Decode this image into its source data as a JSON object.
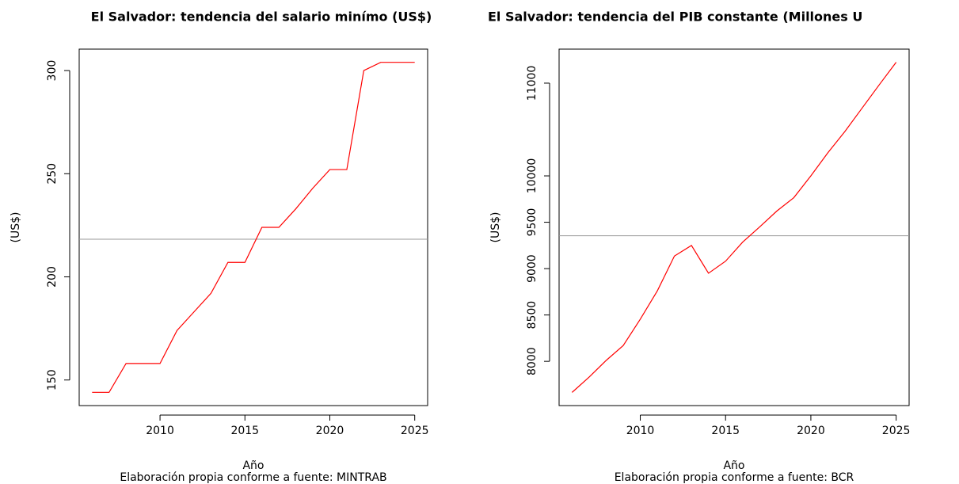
{
  "chart_data": [
    {
      "type": "line",
      "title": "El Salvador: tendencia del salario minímo (US$)",
      "x_label": "Año",
      "y_label": "(US$)",
      "caption": "Elaboración propia conforme a fuente: MINTRAB",
      "x": [
        2006,
        2007,
        2008,
        2009,
        2010,
        2011,
        2012,
        2013,
        2014,
        2015,
        2016,
        2017,
        2018,
        2019,
        2020,
        2021,
        2022,
        2023,
        2024,
        2025
      ],
      "series": [
        {
          "color": "#ff0000",
          "values": [
            144,
            144,
            158,
            158,
            158,
            174,
            183,
            192,
            207,
            207,
            224,
            224,
            233,
            243,
            252,
            252,
            300,
            304,
            304,
            304
          ]
        }
      ],
      "reference_line": 218.25,
      "reference_color": "#999999",
      "xlim": [
        2005.24,
        2025.76
      ],
      "xticks": [
        2010,
        2015,
        2020,
        2025
      ],
      "ylim": [
        137.6,
        310.4
      ],
      "yticks": [
        150,
        200,
        250,
        300
      ]
    },
    {
      "type": "line",
      "title": "El Salvador: tendencia del PIB constante (Millones U",
      "x_label": "Año",
      "y_label": "(US$)",
      "caption": "Elaboración propia conforme a fuente: BCR",
      "x": [
        2006,
        2007,
        2008,
        2009,
        2010,
        2011,
        2012,
        2013,
        2014,
        2015,
        2016,
        2017,
        2018,
        2019,
        2020,
        2021,
        2022,
        2023,
        2024,
        2025
      ],
      "series": [
        {
          "color": "#ff0000",
          "values": [
            7665,
            7830,
            8010,
            8170,
            8455,
            8760,
            9135,
            9250,
            8950,
            9080,
            9285,
            9450,
            9620,
            9765,
            10000,
            10250,
            10480,
            10730,
            10980,
            11225
          ]
        }
      ],
      "reference_line": 9354.5,
      "reference_color": "#999999",
      "xlim": [
        2005.24,
        2025.76
      ],
      "xticks": [
        2010,
        2015,
        2020,
        2025
      ],
      "ylim": [
        7523,
        11367
      ],
      "yticks": [
        8000,
        8500,
        9000,
        9500,
        10000,
        11000
      ]
    }
  ]
}
